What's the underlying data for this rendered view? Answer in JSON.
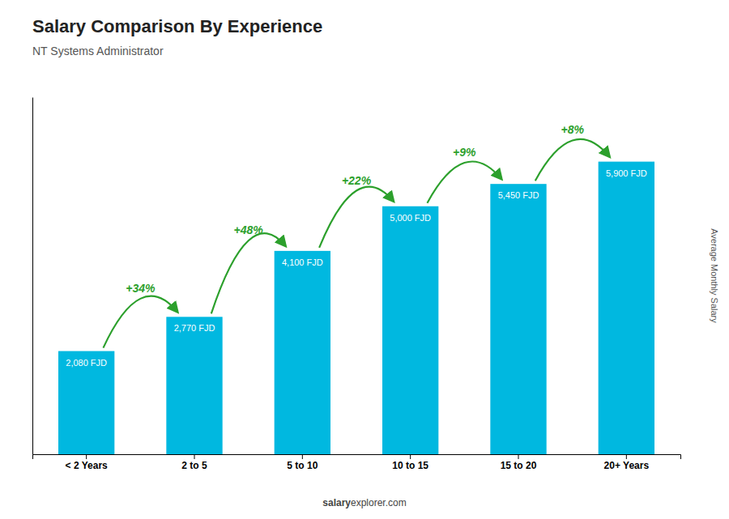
{
  "chart_data": {
    "type": "bar",
    "title": "Salary Comparison By Experience",
    "subtitle": "NT Systems Administrator",
    "ylabel": "Average Monthly Salary",
    "categories": [
      "< 2 Years",
      "2 to 5",
      "5 to 10",
      "10 to 15",
      "15 to 20",
      "20+ Years"
    ],
    "values": [
      2080,
      2770,
      4100,
      5000,
      5450,
      5900
    ],
    "value_labels": [
      "2,080 FJD",
      "2,770 FJD",
      "4,100 FJD",
      "5,000 FJD",
      "5,450 FJD",
      "5,900 FJD"
    ],
    "data_labels": true,
    "annotations": [
      "+34%",
      "+48%",
      "+22%",
      "+9%",
      "+8%"
    ],
    "footer": [
      "salary",
      "explorer.com"
    ],
    "color": "#00b8e0",
    "ylim": [
      0,
      7200
    ],
    "tick_labels": "x",
    "grid": false
  }
}
